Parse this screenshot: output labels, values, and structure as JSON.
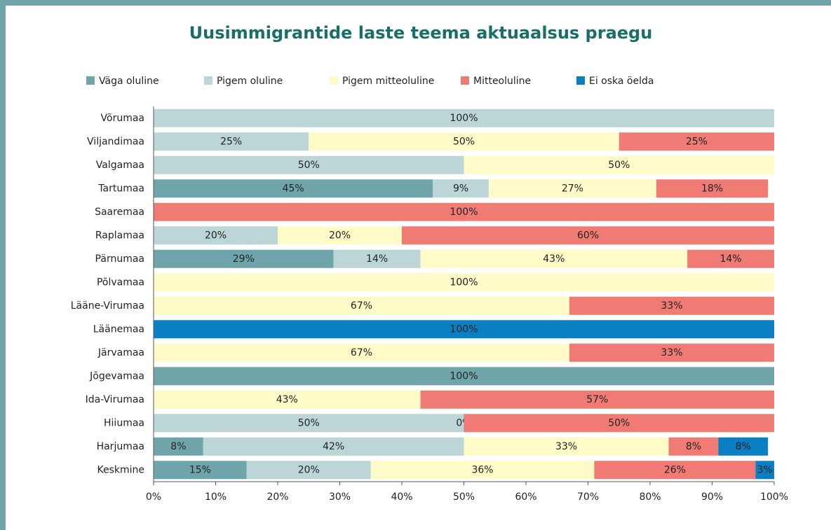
{
  "chart_data": {
    "type": "stacked-barh",
    "title": "Uusimmigrantide laste teema aktuaalsus praegu",
    "categories": [
      "Võrumaa",
      "Viljandimaa",
      "Valgamaa",
      "Tartumaa",
      "Saaremaa",
      "Raplamaa",
      "Pärnumaa",
      "Põlvamaa",
      "Lääne-Virumaa",
      "Läänemaa",
      "Järvamaa",
      "Jõgevamaa",
      "Ida-Virumaa",
      "Hiiumaa",
      "Harjumaa",
      "Keskmine"
    ],
    "series": [
      {
        "name": "Väga oluline",
        "color": "#6fa5aa",
        "values": [
          0,
          0,
          0,
          45,
          0,
          0,
          29,
          0,
          0,
          0,
          0,
          100,
          0,
          0,
          8,
          15
        ],
        "value_labels": [
          null,
          null,
          null,
          "45%",
          null,
          null,
          "29%",
          null,
          null,
          null,
          null,
          "100%",
          null,
          null,
          "8%",
          "15%"
        ]
      },
      {
        "name": "Pigem oluline",
        "color": "#bcd6d7",
        "values": [
          100,
          25,
          50,
          9,
          0,
          20,
          14,
          0,
          0,
          0,
          0,
          0,
          0,
          50,
          42,
          20
        ],
        "value_labels": [
          "100%",
          "25%",
          "50%",
          "9%",
          null,
          "20%",
          "14%",
          null,
          null,
          null,
          null,
          null,
          null,
          "50%",
          "42%",
          "20%"
        ]
      },
      {
        "name": "Pigem mitteoluline",
        "color": "#fffbc8",
        "values": [
          0,
          50,
          50,
          27,
          0,
          20,
          43,
          100,
          67,
          0,
          67,
          0,
          43,
          0,
          33,
          36
        ],
        "value_labels": [
          null,
          "50%",
          "50%",
          "27%",
          null,
          "20%",
          "43%",
          "100%",
          "67%",
          null,
          "67%",
          null,
          "43%",
          "0%",
          "33%",
          "36%"
        ]
      },
      {
        "name": "Mitteoluline",
        "color": "#f07b74",
        "values": [
          0,
          25,
          0,
          18,
          100,
          60,
          14,
          0,
          33,
          0,
          33,
          0,
          57,
          50,
          8,
          26
        ],
        "value_labels": [
          null,
          "25%",
          null,
          "18%",
          "100%",
          "60%",
          "14%",
          null,
          "33%",
          null,
          "33%",
          null,
          "57%",
          "50%",
          "8%",
          "26%"
        ]
      },
      {
        "name": "Ei oska öelda",
        "color": "#0a7fc4",
        "values": [
          0,
          0,
          0,
          0,
          0,
          0,
          0,
          0,
          0,
          100,
          0,
          0,
          0,
          0,
          8,
          3
        ],
        "value_labels": [
          null,
          null,
          null,
          null,
          null,
          null,
          null,
          null,
          null,
          "100%",
          null,
          null,
          null,
          null,
          "8%",
          "3%"
        ]
      }
    ],
    "xlim": [
      0,
      100
    ],
    "xticks": [
      {
        "value": 0,
        "label": "0%"
      },
      {
        "value": 10,
        "label": "10%"
      },
      {
        "value": 20,
        "label": "20%"
      },
      {
        "value": 30,
        "label": "30%"
      },
      {
        "value": 40,
        "label": "40%"
      },
      {
        "value": 50,
        "label": "50%"
      },
      {
        "value": 60,
        "label": "60%"
      },
      {
        "value": 70,
        "label": "70%"
      },
      {
        "value": 80,
        "label": "80%"
      },
      {
        "value": 90,
        "label": "90%"
      },
      {
        "value": 100,
        "label": "100%"
      }
    ],
    "legend": "top"
  }
}
